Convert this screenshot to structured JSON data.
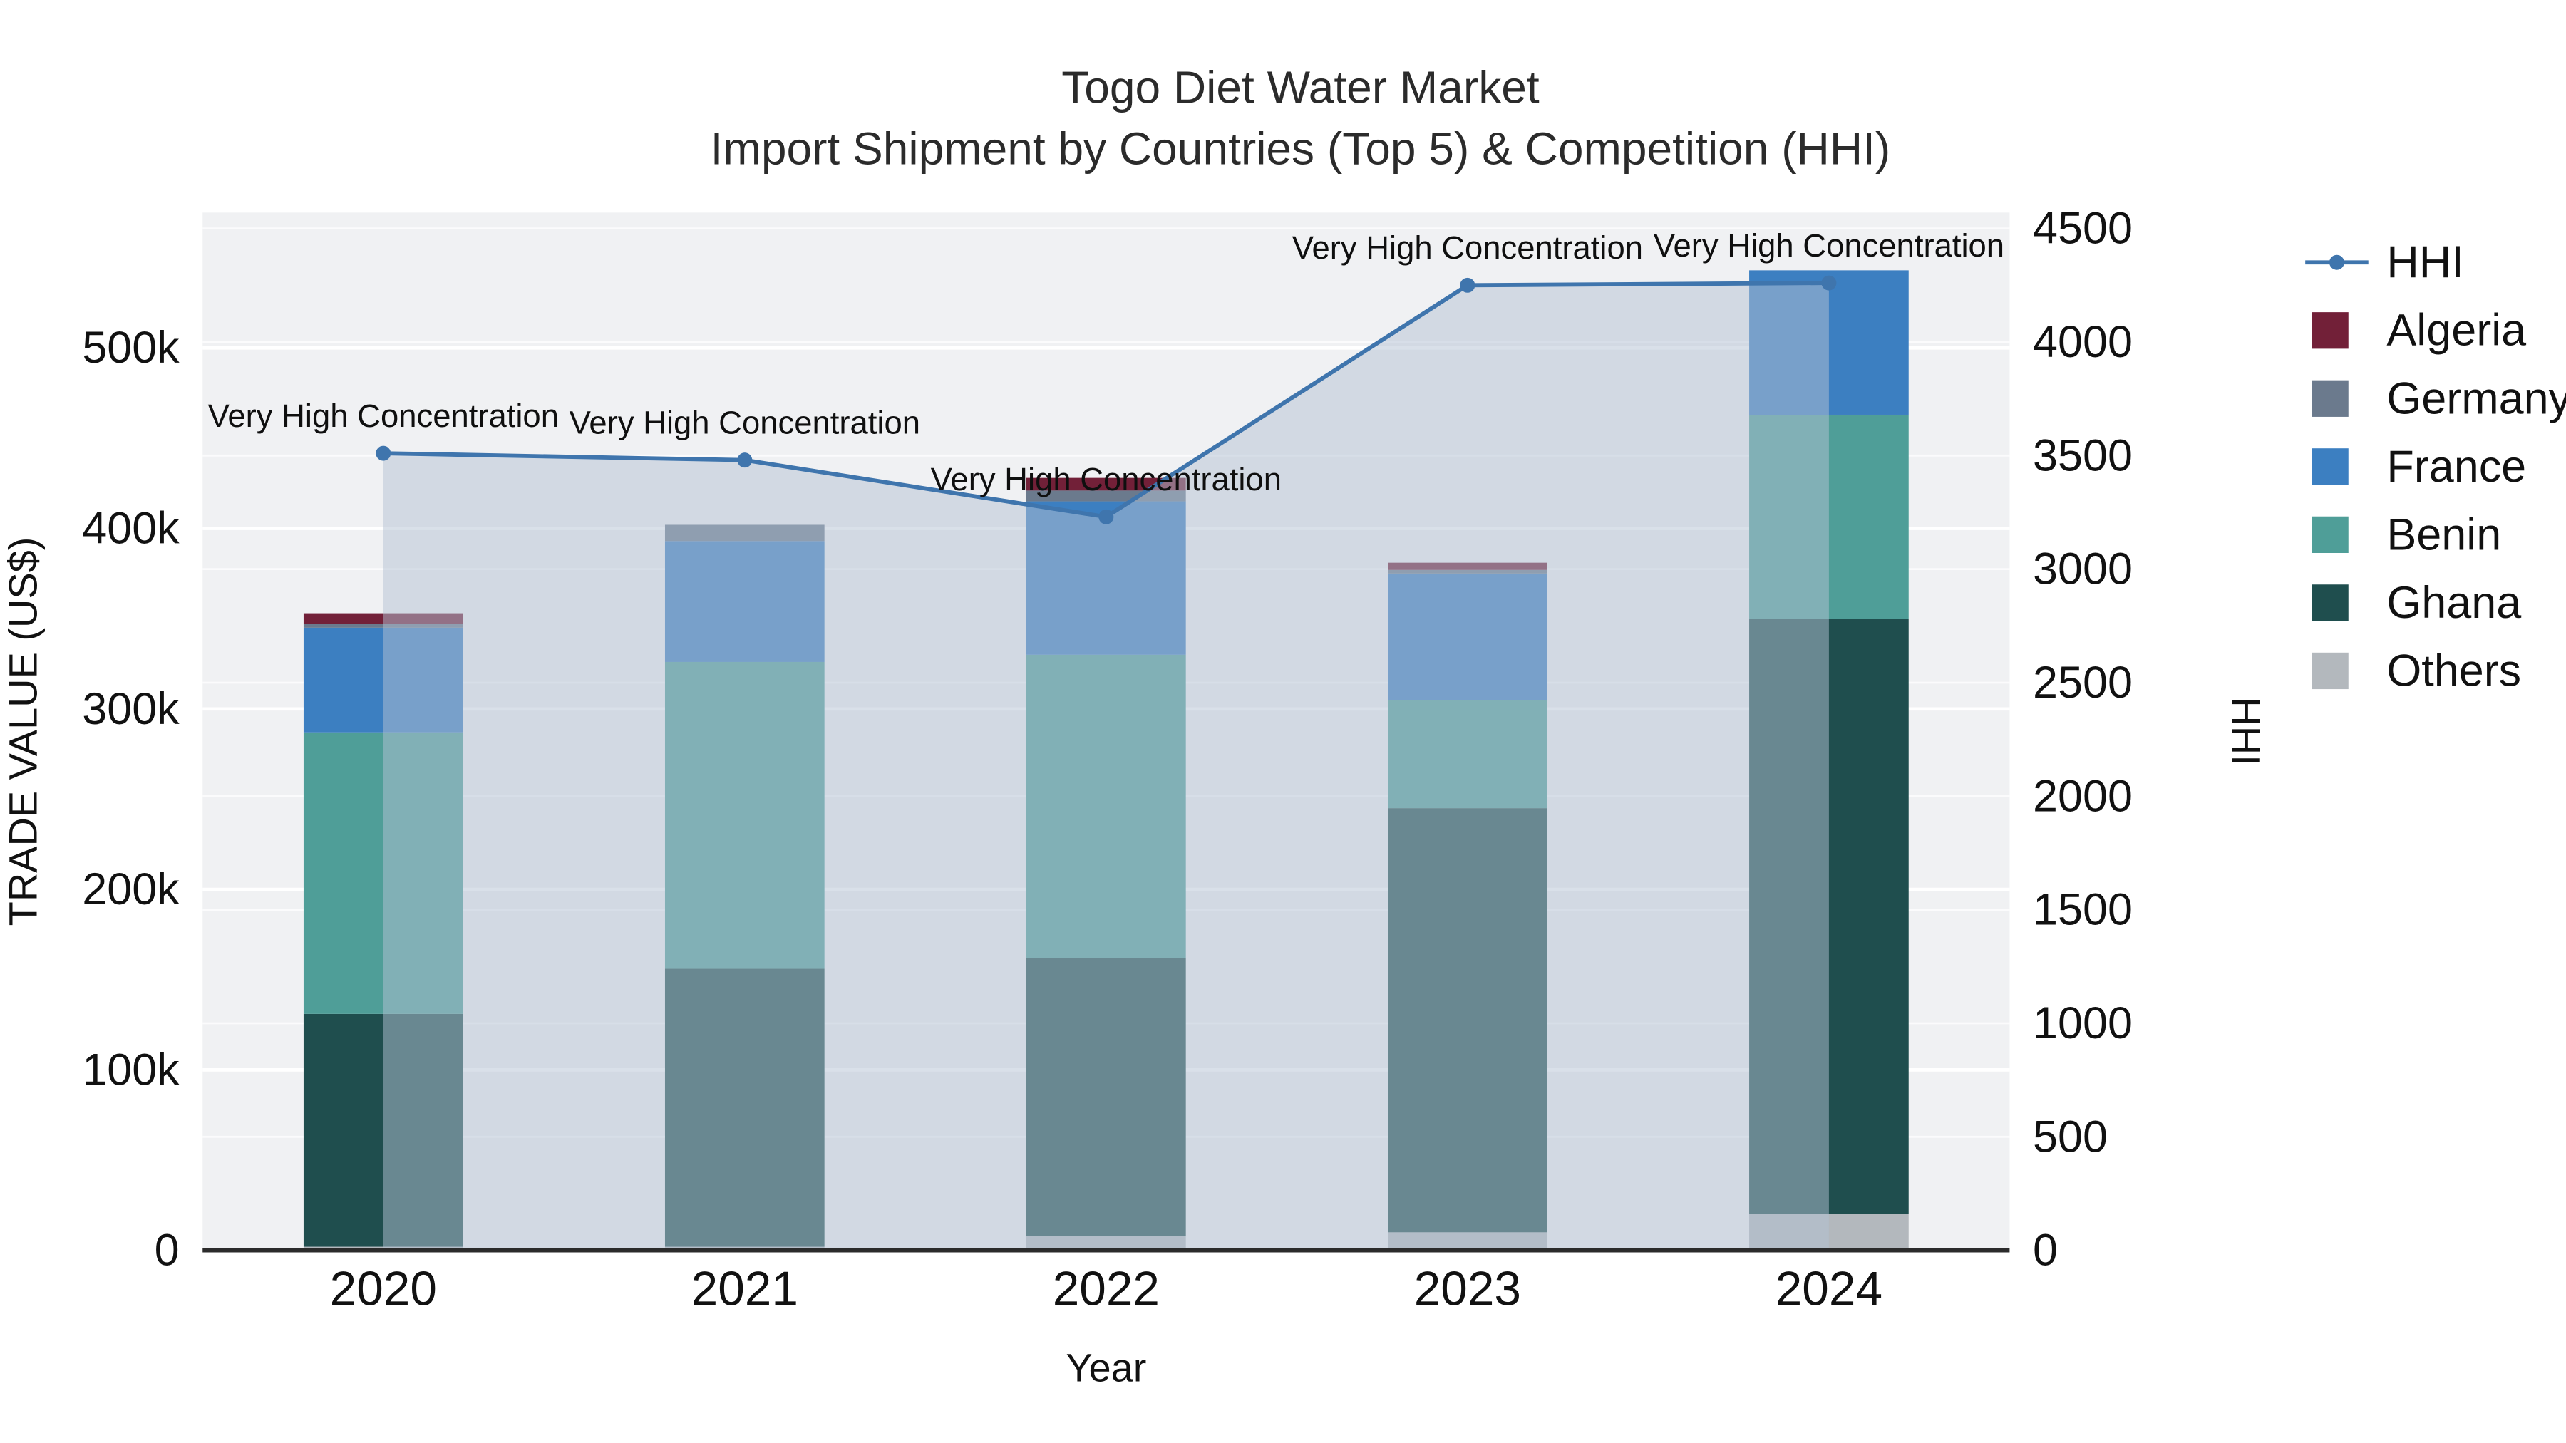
{
  "title": {
    "line1": "Togo Diet Water Market",
    "line2": "Import Shipment by Countries (Top 5) & Competition (HHI)"
  },
  "chart_data": {
    "type": "bar",
    "subtype": "stacked-bar-with-line",
    "title": "Togo Diet Water Market\nImport Shipment by Countries (Top 5) & Competition (HHI)",
    "xlabel": "Year",
    "ylabel_left": "TRADE VALUE (US$)",
    "ylabel_right": "HHI",
    "categories": [
      "2020",
      "2021",
      "2022",
      "2023",
      "2024"
    ],
    "series": [
      {
        "name": "Others",
        "color": "#b3b8bd",
        "values": [
          2000,
          2000,
          8000,
          10000,
          20000
        ]
      },
      {
        "name": "Ghana",
        "color": "#1f4e4e",
        "values": [
          129000,
          154000,
          154000,
          235000,
          330000
        ]
      },
      {
        "name": "Benin",
        "color": "#4f9e98",
        "values": [
          156000,
          170000,
          168000,
          60000,
          113000
        ]
      },
      {
        "name": "France",
        "color": "#3c7fc1",
        "values": [
          58000,
          67000,
          85000,
          70000,
          80000
        ]
      },
      {
        "name": "Germany",
        "color": "#6b7a8d",
        "values": [
          2000,
          9000,
          6000,
          2000,
          0
        ]
      },
      {
        "name": "Algeria",
        "color": "#722038",
        "values": [
          6000,
          0,
          7000,
          4000,
          0
        ]
      }
    ],
    "totals": [
      353000,
      402000,
      428000,
      381000,
      543000
    ],
    "line_series": {
      "name": "HHI",
      "color": "#3f75ad",
      "area_fill": "#b4c1d4",
      "area_opacity": 0.5,
      "values": [
        3510,
        3480,
        3230,
        4250,
        4260
      ]
    },
    "annotations": [
      {
        "text": "Very High Concentration",
        "x_index": 0
      },
      {
        "text": "Very High Concentration",
        "x_index": 1
      },
      {
        "text": "Very High Concentration",
        "x_index": 2
      },
      {
        "text": "Very High Concentration",
        "x_index": 3
      },
      {
        "text": "Very High Concentration",
        "x_index": 4
      }
    ],
    "axis_left": {
      "title": "TRADE VALUE (US$)",
      "range": [
        0,
        575000
      ],
      "tick_values": [
        0,
        100000,
        200000,
        300000,
        400000,
        500000
      ],
      "tick_labels": [
        "0",
        "100k",
        "200k",
        "300k",
        "400k",
        "500k"
      ]
    },
    "axis_right": {
      "title": "HHI",
      "range": [
        0,
        4570
      ],
      "tick_values": [
        0,
        500,
        1000,
        1500,
        2000,
        2500,
        3000,
        3500,
        4000,
        4500
      ],
      "tick_labels": [
        "0",
        "500",
        "1000",
        "1500",
        "2000",
        "2500",
        "3000",
        "3500",
        "4000",
        "4500"
      ]
    },
    "legend": {
      "position": "right",
      "entries": [
        {
          "label": "HHI",
          "type": "line",
          "color": "#3f75ad"
        },
        {
          "label": "Algeria",
          "type": "square",
          "color": "#722038"
        },
        {
          "label": "Germany",
          "type": "square",
          "color": "#6b7a8d"
        },
        {
          "label": "France",
          "type": "square",
          "color": "#3c7fc1"
        },
        {
          "label": "Benin",
          "type": "square",
          "color": "#4f9e98"
        },
        {
          "label": "Ghana",
          "type": "square",
          "color": "#1f4e4e"
        },
        {
          "label": "Others",
          "type": "square",
          "color": "#b3b8bd"
        }
      ]
    },
    "style": {
      "plot_bg": "#f0f1f3",
      "grid_major": "#ffffff",
      "grid_minor": "rgba(255,255,255,0.7)",
      "axis_line": "#2b2b2b",
      "title_color": "#2b2b2b",
      "tick_color": "#111111",
      "annotation_color": "#0f0f0f"
    },
    "grid": true
  }
}
